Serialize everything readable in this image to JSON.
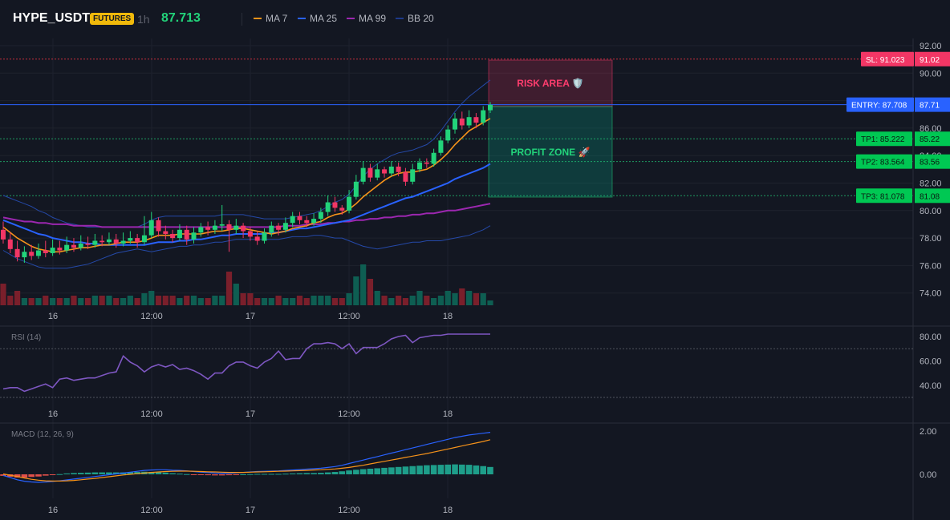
{
  "header": {
    "symbol": "HYPE_USDT",
    "badge": "FUTURES",
    "timeframe": "1h",
    "last_price": "87.713",
    "legend": [
      {
        "label": "MA 7",
        "color": "#f7931a"
      },
      {
        "label": "MA 25",
        "color": "#2962ff"
      },
      {
        "label": "MA 99",
        "color": "#9c27b0"
      },
      {
        "label": "BB 20",
        "color": "#1e3a8a"
      }
    ]
  },
  "price_axis": [
    "92.00",
    "90.00",
    "88.00",
    "86.00",
    "84.00",
    "82.00",
    "80.00",
    "78.00",
    "76.00",
    "74.00"
  ],
  "time_axis": [
    "16",
    "12:00",
    "17",
    "12:00",
    "18"
  ],
  "levels": {
    "sl": {
      "label": "SL: 91.023",
      "axis": "91.02",
      "value": 91.023,
      "color": "#f23645"
    },
    "entry": {
      "label": "ENTRY: 87.708",
      "axis": "87.71",
      "value": 87.708,
      "color": "#2962ff"
    },
    "tp1": {
      "label": "TP1: 85.222",
      "axis": "85.22",
      "value": 85.222,
      "color": "#22ab5a"
    },
    "tp2": {
      "label": "TP2: 83.564",
      "axis": "83.56",
      "value": 83.564,
      "color": "#22ab5a"
    },
    "tp3": {
      "label": "TP3: 81.078",
      "axis": "81.08",
      "value": 81.078,
      "color": "#22ab5a"
    }
  },
  "zones": {
    "risk": "RISK AREA 🛡️",
    "profit": "PROFIT ZONE 🚀"
  },
  "rsi": {
    "title": "RSI (14)",
    "axis": [
      "80.00",
      "60.00",
      "40.00"
    ]
  },
  "macd": {
    "title": "MACD (12, 26, 9)",
    "axis": [
      "2.00",
      "0.00"
    ]
  },
  "chart_data": {
    "type": "candlestick",
    "price_range": [
      73,
      92.5
    ],
    "candles": [
      [
        78.6,
        77.9,
        79.2,
        77.6
      ],
      [
        77.9,
        77.2,
        78.4,
        76.9
      ],
      [
        77.2,
        76.6,
        77.8,
        76.3
      ],
      [
        76.6,
        77.0,
        77.4,
        76.2
      ],
      [
        77.0,
        76.7,
        77.5,
        76.4
      ],
      [
        76.7,
        77.1,
        77.6,
        76.5
      ],
      [
        77.1,
        76.9,
        77.8,
        76.6
      ],
      [
        76.9,
        77.3,
        77.9,
        76.7
      ],
      [
        77.3,
        77.1,
        77.8,
        76.8
      ],
      [
        77.1,
        77.5,
        78.1,
        76.9
      ],
      [
        77.5,
        77.3,
        78.0,
        77.0
      ],
      [
        77.3,
        77.6,
        78.2,
        77.1
      ],
      [
        77.6,
        77.5,
        78.1,
        77.2
      ],
      [
        77.5,
        77.8,
        78.3,
        77.3
      ],
      [
        77.8,
        77.7,
        78.2,
        77.4
      ],
      [
        77.7,
        77.9,
        78.4,
        77.5
      ],
      [
        77.9,
        77.6,
        78.3,
        77.3
      ],
      [
        77.6,
        77.8,
        78.4,
        77.4
      ],
      [
        77.8,
        78.0,
        78.5,
        77.6
      ],
      [
        78.0,
        77.7,
        78.3,
        77.3
      ],
      [
        77.7,
        78.2,
        79.6,
        77.5
      ],
      [
        78.2,
        79.3,
        79.9,
        78.0
      ],
      [
        79.3,
        78.5,
        79.5,
        78.1
      ],
      [
        78.5,
        78.3,
        78.9,
        77.9
      ],
      [
        78.3,
        78.0,
        78.6,
        77.7
      ],
      [
        78.0,
        78.6,
        79.0,
        77.8
      ],
      [
        78.6,
        77.9,
        78.9,
        77.5
      ],
      [
        77.9,
        78.4,
        78.8,
        77.6
      ],
      [
        78.4,
        78.8,
        79.1,
        78.1
      ],
      [
        78.8,
        78.6,
        79.2,
        78.2
      ],
      [
        78.6,
        78.9,
        79.3,
        78.3
      ],
      [
        78.9,
        79.0,
        80.4,
        78.5
      ],
      [
        79.0,
        78.6,
        79.3,
        77.0
      ],
      [
        78.6,
        78.9,
        79.4,
        78.3
      ],
      [
        78.9,
        78.5,
        79.1,
        78.0
      ],
      [
        78.5,
        78.1,
        78.8,
        77.8
      ],
      [
        78.1,
        77.8,
        78.5,
        77.5
      ],
      [
        77.8,
        78.4,
        78.7,
        77.6
      ],
      [
        78.4,
        78.9,
        79.2,
        78.1
      ],
      [
        78.9,
        78.6,
        79.1,
        78.2
      ],
      [
        78.6,
        79.1,
        79.5,
        78.4
      ],
      [
        79.1,
        79.6,
        79.9,
        78.8
      ],
      [
        79.6,
        79.3,
        79.9,
        79.0
      ],
      [
        79.3,
        79.1,
        79.6,
        78.8
      ],
      [
        79.1,
        79.4,
        79.8,
        78.9
      ],
      [
        79.4,
        79.9,
        80.2,
        79.1
      ],
      [
        79.9,
        80.6,
        81.1,
        79.6
      ],
      [
        80.6,
        80.2,
        81.0,
        79.9
      ],
      [
        80.2,
        80.0,
        80.4,
        79.7
      ],
      [
        80.0,
        81.0,
        81.5,
        79.8
      ],
      [
        81.0,
        82.1,
        82.6,
        80.8
      ],
      [
        82.1,
        83.1,
        83.6,
        81.9
      ],
      [
        83.1,
        82.4,
        83.4,
        82.1
      ],
      [
        82.4,
        83.0,
        83.4,
        82.2
      ],
      [
        83.0,
        82.7,
        83.2,
        82.4
      ],
      [
        82.7,
        83.2,
        83.6,
        82.5
      ],
      [
        83.2,
        82.8,
        83.5,
        82.5
      ],
      [
        82.8,
        82.1,
        83.1,
        81.8
      ],
      [
        82.1,
        83.0,
        83.4,
        81.9
      ],
      [
        83.0,
        83.5,
        83.8,
        82.8
      ],
      [
        83.5,
        83.4,
        83.8,
        83.1
      ],
      [
        83.4,
        84.2,
        84.5,
        83.2
      ],
      [
        84.2,
        85.1,
        85.4,
        84.0
      ],
      [
        85.1,
        85.9,
        86.2,
        84.9
      ],
      [
        85.9,
        86.7,
        87.1,
        85.6
      ],
      [
        86.7,
        86.2,
        87.2,
        85.9
      ],
      [
        86.2,
        86.8,
        87.3,
        86.0
      ],
      [
        86.8,
        86.4,
        87.1,
        86.0
      ],
      [
        86.4,
        87.3,
        87.6,
        86.2
      ],
      [
        87.3,
        87.7,
        87.9,
        87.1
      ]
    ],
    "ma7": [
      78.8,
      78.4,
      78.0,
      77.7,
      77.4,
      77.2,
      77.1,
      77.0,
      77.0,
      77.1,
      77.2,
      77.3,
      77.3,
      77.4,
      77.5,
      77.5,
      77.6,
      77.7,
      77.7,
      77.7,
      77.8,
      78.0,
      78.2,
      78.2,
      78.2,
      78.3,
      78.3,
      78.3,
      78.3,
      78.4,
      78.5,
      78.5,
      78.6,
      78.7,
      78.7,
      78.6,
      78.5,
      78.4,
      78.3,
      78.4,
      78.5,
      78.7,
      78.8,
      78.9,
      79.1,
      79.2,
      79.5,
      79.7,
      79.8,
      80.1,
      80.5,
      81.0,
      81.4,
      81.8,
      82.2,
      82.5,
      82.7,
      82.8,
      82.8,
      82.9,
      83.0,
      83.3,
      83.7,
      84.2,
      84.8,
      85.3,
      85.8,
      86.1,
      86.4,
      86.7
    ],
    "ma25": [
      79.3,
      79.1,
      78.9,
      78.7,
      78.5,
      78.3,
      78.2,
      78.0,
      77.9,
      77.8,
      77.7,
      77.7,
      77.6,
      77.6,
      77.5,
      77.5,
      77.5,
      77.5,
      77.5,
      77.5,
      77.5,
      77.6,
      77.7,
      77.7,
      77.7,
      77.8,
      77.8,
      77.9,
      77.9,
      78.0,
      78.1,
      78.2,
      78.2,
      78.3,
      78.3,
      78.3,
      78.3,
      78.3,
      78.4,
      78.4,
      78.5,
      78.6,
      78.7,
      78.7,
      78.8,
      78.9,
      79.0,
      79.1,
      79.2,
      79.3,
      79.5,
      79.7,
      79.9,
      80.1,
      80.3,
      80.5,
      80.7,
      80.9,
      81.0,
      81.2,
      81.4,
      81.6,
      81.8,
      82.0,
      82.3,
      82.5,
      82.7,
      82.9,
      83.1,
      83.4
    ],
    "ma99": [
      79.5,
      79.4,
      79.3,
      79.2,
      79.2,
      79.1,
      79.1,
      79.0,
      79.0,
      79.0,
      78.9,
      78.9,
      78.9,
      78.9,
      78.8,
      78.8,
      78.8,
      78.8,
      78.8,
      78.8,
      78.8,
      78.8,
      78.8,
      78.8,
      78.8,
      78.8,
      78.8,
      78.8,
      78.8,
      78.8,
      78.8,
      78.8,
      78.8,
      78.8,
      78.8,
      78.8,
      78.8,
      78.8,
      78.8,
      78.8,
      78.9,
      78.9,
      78.9,
      79.0,
      79.0,
      79.0,
      79.1,
      79.1,
      79.2,
      79.2,
      79.3,
      79.3,
      79.4,
      79.4,
      79.5,
      79.5,
      79.6,
      79.6,
      79.7,
      79.7,
      79.8,
      79.8,
      79.9,
      80.0,
      80.0,
      80.1,
      80.2,
      80.3,
      80.4,
      80.5
    ],
    "bb_upper": [
      81.1,
      80.9,
      80.7,
      80.5,
      80.3,
      80.0,
      79.8,
      79.5,
      79.3,
      79.1,
      79.0,
      78.9,
      78.8,
      78.8,
      78.8,
      78.8,
      78.8,
      78.8,
      78.8,
      78.8,
      79.0,
      79.3,
      79.5,
      79.6,
      79.6,
      79.6,
      79.6,
      79.6,
      79.6,
      79.6,
      79.6,
      79.7,
      79.7,
      79.7,
      79.7,
      79.6,
      79.5,
      79.4,
      79.4,
      79.4,
      79.4,
      79.5,
      79.6,
      79.7,
      79.8,
      80.0,
      80.3,
      80.6,
      80.8,
      81.2,
      81.8,
      82.5,
      83.0,
      83.4,
      83.7,
      84.0,
      84.2,
      84.3,
      84.4,
      84.6,
      84.8,
      85.2,
      85.8,
      86.5,
      87.2,
      87.8,
      88.3,
      88.7,
      89.1,
      89.5
    ],
    "bb_lower": [
      77.1,
      76.8,
      76.5,
      76.3,
      76.1,
      75.9,
      75.8,
      75.8,
      75.8,
      75.8,
      75.9,
      76.0,
      76.1,
      76.3,
      76.5,
      76.7,
      76.9,
      77.0,
      77.1,
      77.2,
      77.1,
      77.0,
      77.1,
      77.2,
      77.3,
      77.4,
      77.4,
      77.5,
      77.5,
      77.6,
      77.7,
      77.7,
      77.8,
      77.9,
      77.9,
      77.9,
      77.9,
      77.9,
      77.9,
      77.9,
      78.0,
      78.1,
      78.1,
      78.1,
      78.2,
      78.2,
      78.1,
      78.0,
      78.0,
      77.8,
      77.6,
      77.4,
      77.3,
      77.2,
      77.3,
      77.4,
      77.5,
      77.6,
      77.7,
      77.7,
      77.8,
      77.8,
      77.8,
      77.9,
      78.0,
      78.1,
      78.2,
      78.4,
      78.6,
      78.9
    ],
    "volume": [
      9,
      4,
      6,
      3,
      3,
      3,
      4,
      3,
      3,
      3,
      4,
      3,
      3,
      4,
      4,
      4,
      3,
      3,
      4,
      3,
      5,
      6,
      4,
      4,
      4,
      3,
      4,
      4,
      3,
      3,
      4,
      4,
      14,
      9,
      5,
      5,
      3,
      3,
      3,
      4,
      3,
      3,
      4,
      3,
      4,
      4,
      4,
      3,
      3,
      5,
      12,
      17,
      11,
      6,
      4,
      3,
      4,
      3,
      4,
      6,
      4,
      3,
      4,
      6,
      5,
      7,
      6,
      5,
      5,
      2
    ],
    "rsi": [
      37,
      38,
      38,
      35,
      37,
      39,
      41,
      38,
      45,
      46,
      44,
      45,
      46,
      46,
      48,
      50,
      51,
      64,
      59,
      56,
      51,
      55,
      57,
      55,
      57,
      53,
      54,
      52,
      49,
      45,
      50,
      50,
      56,
      59,
      59,
      56,
      54,
      59,
      62,
      68,
      61,
      62,
      62,
      70,
      74,
      74,
      75,
      74,
      70,
      74,
      66,
      71,
      71,
      71,
      74,
      78,
      80,
      81,
      75,
      79,
      80,
      81,
      81,
      82,
      82,
      82,
      82,
      82,
      82,
      82
    ],
    "macd_line": [
      -0.05,
      -0.15,
      -0.25,
      -0.32,
      -0.35,
      -0.37,
      -0.36,
      -0.33,
      -0.3,
      -0.26,
      -0.22,
      -0.18,
      -0.14,
      -0.1,
      -0.06,
      -0.02,
      0.02,
      0.06,
      0.1,
      0.14,
      0.18,
      0.2,
      0.21,
      0.21,
      0.19,
      0.18,
      0.16,
      0.13,
      0.1,
      0.08,
      0.06,
      0.05,
      0.05,
      0.07,
      0.09,
      0.11,
      0.13,
      0.14,
      0.15,
      0.16,
      0.18,
      0.2,
      0.22,
      0.24,
      0.26,
      0.28,
      0.32,
      0.36,
      0.42,
      0.5,
      0.58,
      0.66,
      0.74,
      0.82,
      0.9,
      0.98,
      1.06,
      1.14,
      1.22,
      1.3,
      1.38,
      1.46,
      1.54,
      1.62,
      1.7,
      1.76,
      1.82,
      1.86,
      1.9,
      1.94
    ],
    "macd_signal": [
      0.02,
      -0.04,
      -0.1,
      -0.17,
      -0.23,
      -0.27,
      -0.3,
      -0.31,
      -0.31,
      -0.3,
      -0.28,
      -0.25,
      -0.22,
      -0.19,
      -0.15,
      -0.11,
      -0.07,
      -0.03,
      0.0,
      0.03,
      0.06,
      0.09,
      0.11,
      0.13,
      0.14,
      0.15,
      0.15,
      0.14,
      0.13,
      0.12,
      0.11,
      0.1,
      0.09,
      0.09,
      0.09,
      0.1,
      0.11,
      0.12,
      0.13,
      0.14,
      0.15,
      0.16,
      0.17,
      0.18,
      0.2,
      0.21,
      0.23,
      0.25,
      0.28,
      0.32,
      0.37,
      0.42,
      0.48,
      0.54,
      0.6,
      0.66,
      0.72,
      0.78,
      0.84,
      0.9,
      0.96,
      1.03,
      1.1,
      1.17,
      1.24,
      1.31,
      1.38,
      1.45,
      1.52,
      1.6
    ],
    "macd_hist": [
      -0.07,
      -0.11,
      -0.15,
      -0.15,
      -0.12,
      -0.1,
      -0.06,
      -0.02,
      0.01,
      0.04,
      0.06,
      0.07,
      0.08,
      0.09,
      0.09,
      0.09,
      0.09,
      0.09,
      0.1,
      0.11,
      0.12,
      0.11,
      0.1,
      0.08,
      0.05,
      0.03,
      0.01,
      -0.01,
      -0.03,
      -0.04,
      -0.05,
      -0.05,
      -0.04,
      -0.02,
      0.0,
      0.01,
      0.02,
      0.02,
      0.02,
      0.02,
      0.03,
      0.04,
      0.05,
      0.06,
      0.06,
      0.07,
      0.09,
      0.11,
      0.14,
      0.18,
      0.21,
      0.24,
      0.26,
      0.28,
      0.3,
      0.32,
      0.34,
      0.36,
      0.38,
      0.4,
      0.42,
      0.43,
      0.44,
      0.45,
      0.46,
      0.45,
      0.44,
      0.41,
      0.38,
      0.34
    ]
  }
}
